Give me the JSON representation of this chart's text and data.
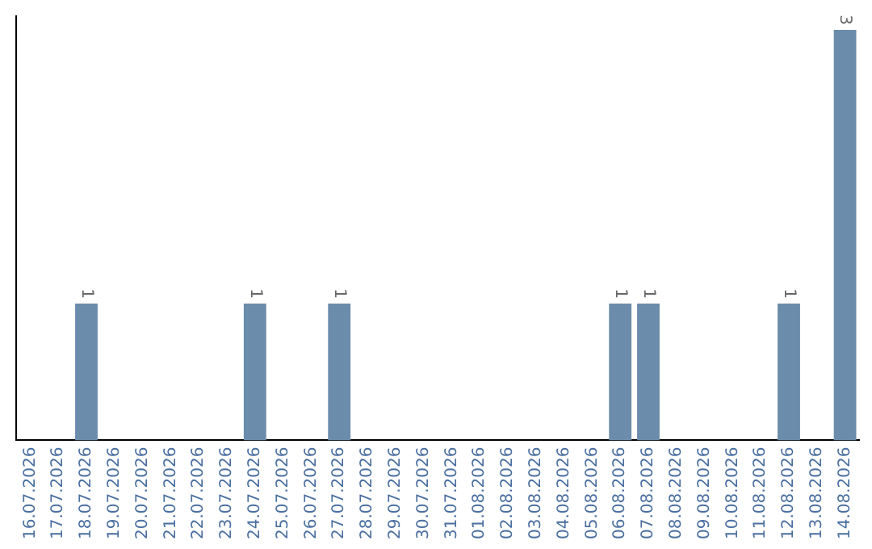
{
  "chart_data": {
    "type": "bar",
    "categories": [
      "16.07.2026",
      "17.07.2026",
      "18.07.2026",
      "19.07.2026",
      "20.07.2026",
      "21.07.2026",
      "22.07.2026",
      "23.07.2026",
      "24.07.2026",
      "25.07.2026",
      "26.07.2026",
      "27.07.2026",
      "28.07.2026",
      "29.07.2026",
      "30.07.2026",
      "31.07.2026",
      "01.08.2026",
      "02.08.2026",
      "03.08.2026",
      "04.08.2026",
      "05.08.2026",
      "06.08.2026",
      "07.08.2026",
      "08.08.2026",
      "09.08.2026",
      "10.08.2026",
      "11.08.2026",
      "12.08.2026",
      "13.08.2026",
      "14.08.2026"
    ],
    "values": [
      0,
      0,
      1,
      0,
      0,
      0,
      0,
      0,
      1,
      0,
      0,
      1,
      0,
      0,
      0,
      0,
      0,
      0,
      0,
      0,
      0,
      1,
      1,
      0,
      0,
      0,
      0,
      1,
      0,
      3
    ],
    "value_labels": [
      null,
      null,
      "1",
      null,
      null,
      null,
      null,
      null,
      "1",
      null,
      null,
      "1",
      null,
      null,
      null,
      null,
      null,
      null,
      null,
      null,
      null,
      "1",
      "1",
      null,
      null,
      null,
      null,
      "1",
      null,
      "3"
    ],
    "color": "#6b8cab",
    "ylim": [
      0,
      3.1
    ],
    "tick_labels": "x",
    "grid": false,
    "legend": false
  }
}
